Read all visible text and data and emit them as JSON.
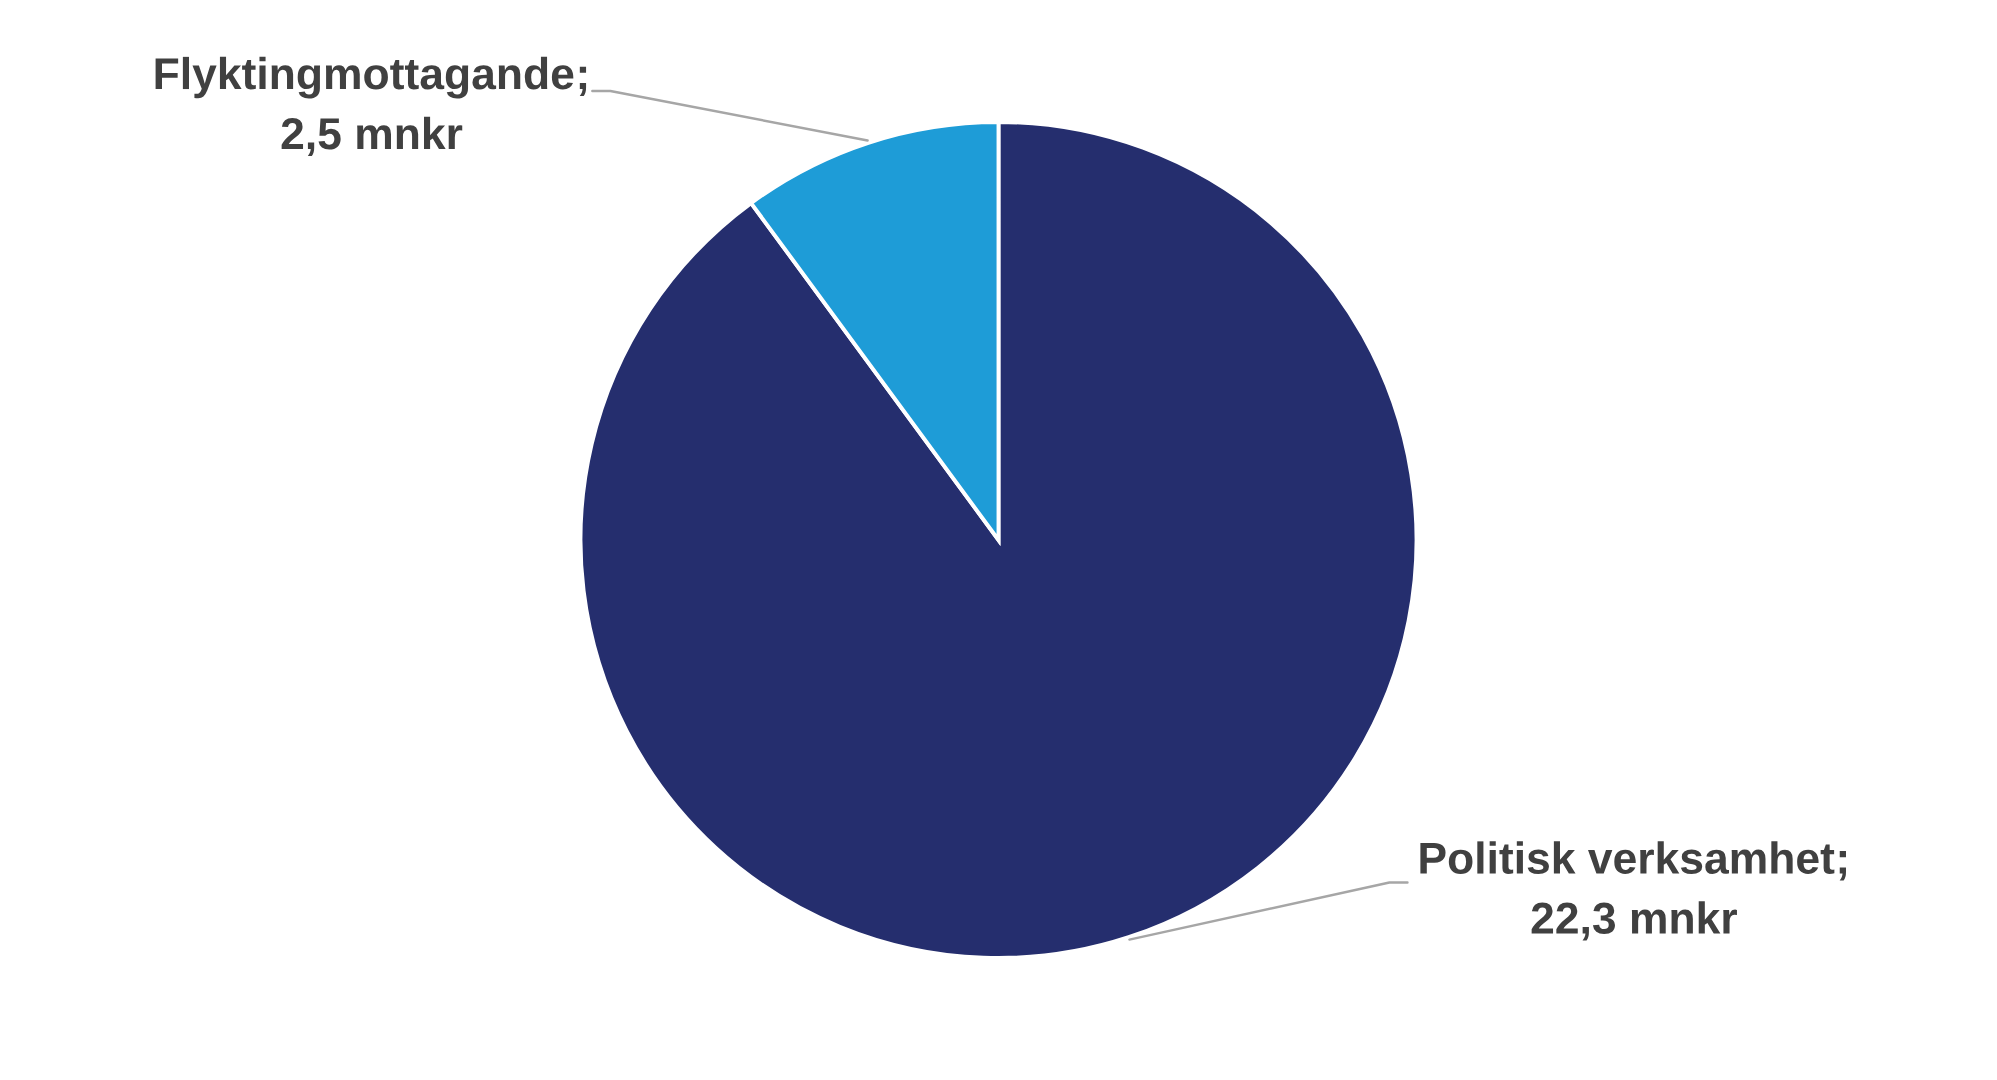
{
  "chart_data": {
    "type": "pie",
    "categories": [
      "Politisk verksamhet",
      "Flyktingmottagande"
    ],
    "values": [
      22.3,
      2.5
    ],
    "value_labels": [
      "22,3 mnkr",
      "2,5 mnkr"
    ],
    "colors": [
      "#252e6e",
      "#1e9cd7"
    ],
    "annotations": [
      ";",
      ";"
    ]
  }
}
